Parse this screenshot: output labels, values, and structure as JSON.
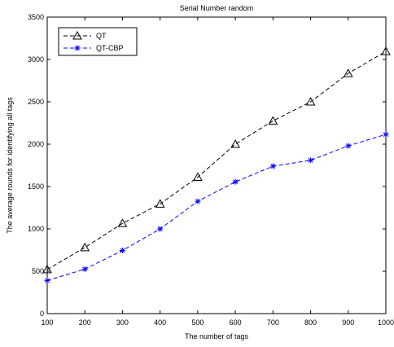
{
  "chart_data": {
    "type": "line",
    "title": "Serial Number random",
    "xlabel": "The number of tags",
    "ylabel": "The average rounds for identifying all tags",
    "xlim": [
      100,
      1000
    ],
    "ylim": [
      0,
      3500
    ],
    "x_ticks": [
      100,
      200,
      300,
      400,
      500,
      600,
      700,
      800,
      900,
      1000
    ],
    "y_ticks": [
      0,
      500,
      1000,
      1500,
      2000,
      2500,
      3000,
      3500
    ],
    "grid": false,
    "legend_position": "top-left",
    "x": [
      100,
      200,
      300,
      400,
      500,
      600,
      700,
      800,
      900,
      1000
    ],
    "series": [
      {
        "name": "QT",
        "values": [
          520,
          780,
          1065,
          1295,
          1610,
          2000,
          2275,
          2500,
          2835,
          3095
        ],
        "color": "#000000",
        "line_style": "dashed",
        "marker": "triangle-up-open"
      },
      {
        "name": "QT-CBP",
        "values": [
          390,
          525,
          745,
          1000,
          1325,
          1555,
          1740,
          1810,
          1980,
          2115
        ],
        "color": "#0000ff",
        "line_style": "dashed",
        "marker": "star"
      }
    ]
  }
}
